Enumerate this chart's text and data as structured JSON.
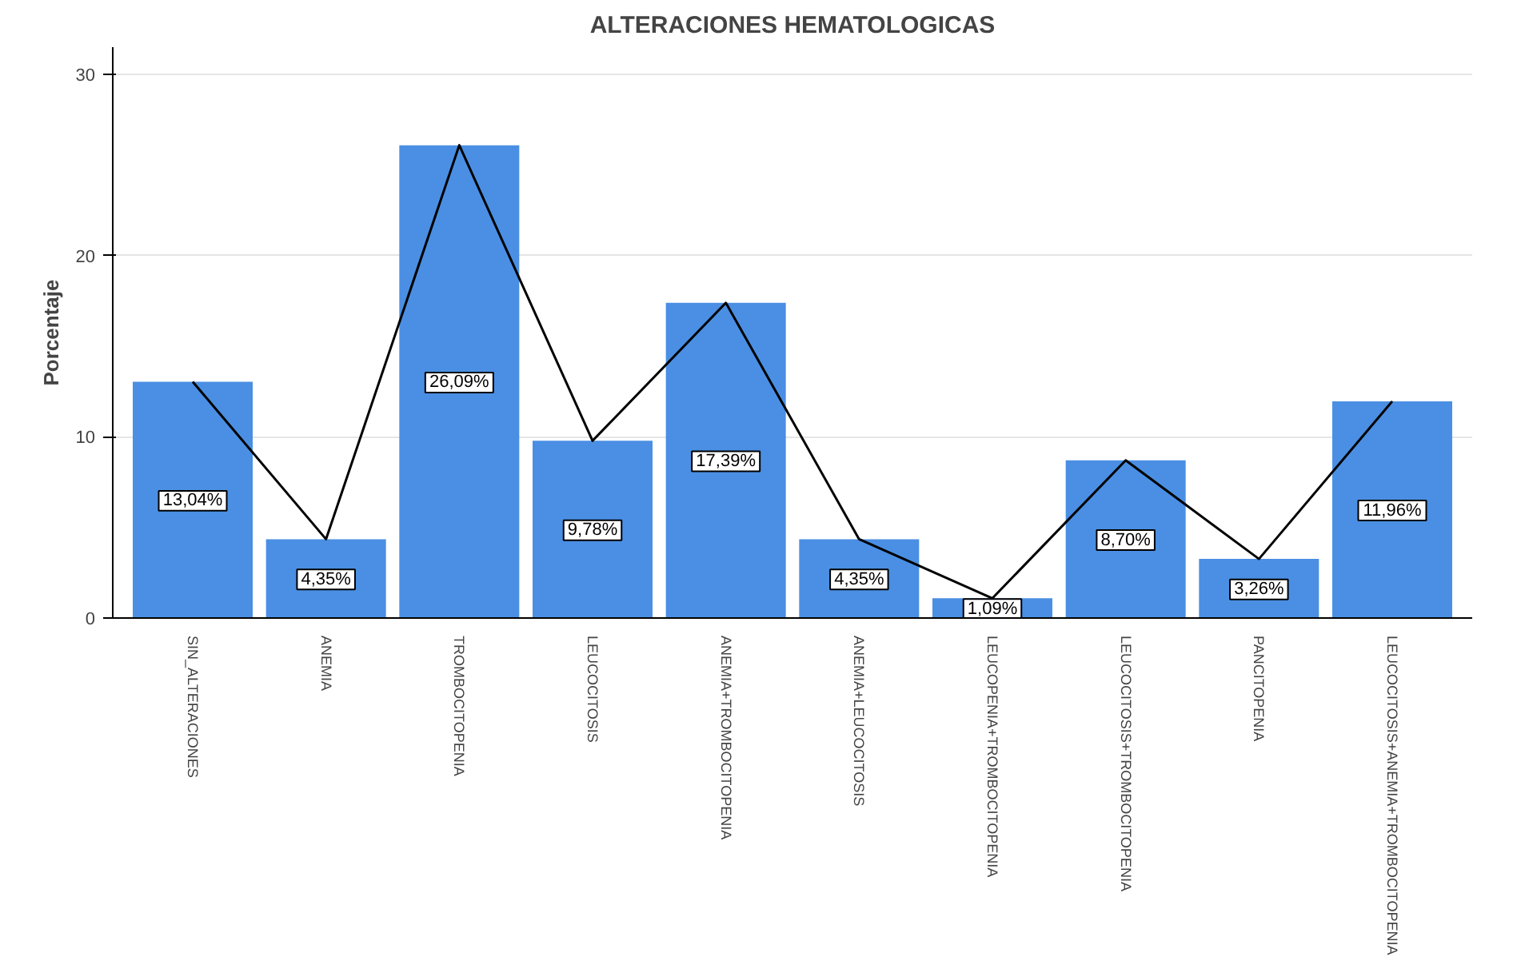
{
  "chart_data": {
    "type": "bar",
    "title": "ALTERACIONES HEMATOLOGICAS",
    "ylabel": "Porcentaje",
    "categories": [
      "SIN_ALTERACIONES",
      "ANEMIA",
      "TROMBOCITOPENIA",
      "LEUCOCITOSIS",
      "ANEMIA+TROMBOCITOPENIA",
      "ANEMIA+LEUCOCITOSIS",
      "LEUCOPENIA+TROMBOCITOPENIA",
      "LEUCOCITOSIS+TROMBOCITOPENIA",
      "PANCITOPENIA",
      "LEUCOCITOSIS+ANEMIA+TROMBOCITOPENIA"
    ],
    "series": [
      {
        "color": "#4a8fe3",
        "values": [
          13.04,
          4.35,
          26.09,
          9.78,
          17.39,
          4.35,
          1.09,
          8.7,
          3.26,
          11.96
        ],
        "value_labels": [
          "13,04%",
          "4,35%",
          "26,09%",
          "9,78%",
          "17,39%",
          "4,35%",
          "1,09%",
          "8,70%",
          "3,26%",
          "11,96%"
        ]
      },
      {
        "type": "line",
        "color": "#000000",
        "values": [
          13.04,
          4.35,
          26.09,
          9.78,
          17.39,
          4.35,
          1.09,
          8.7,
          3.26,
          11.96
        ]
      }
    ],
    "ylim": [
      0,
      31.5
    ],
    "yticks": [
      0,
      10,
      20,
      30
    ],
    "grid": "y"
  }
}
